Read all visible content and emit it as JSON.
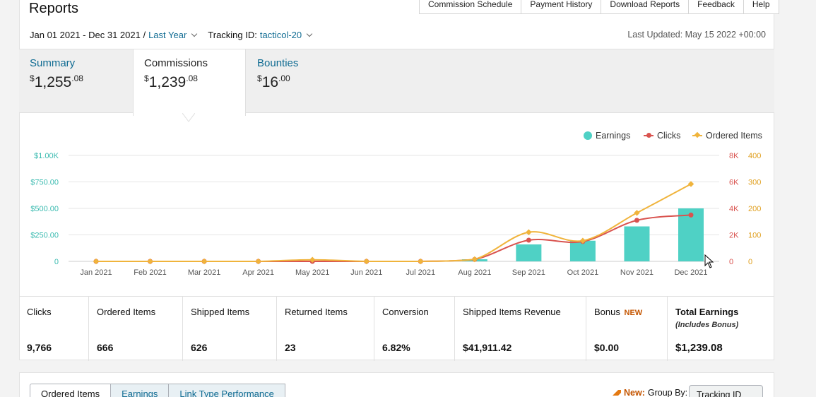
{
  "header": {
    "title": "Reports",
    "top_tabs": [
      "Commission Schedule",
      "Payment History",
      "Download Reports",
      "Feedback",
      "Help"
    ],
    "date_range": "Jan 01 2021 - Dec 31 2021 /",
    "date_preset": "Last Year",
    "tracking_label": "Tracking ID:",
    "tracking_id": "tacticol-20",
    "last_updated": "Last Updated: May 15 2022 +00:00"
  },
  "kpis": [
    {
      "label": "Summary",
      "currency": "$",
      "whole": "1,255",
      "cents": ".08"
    },
    {
      "label": "Commissions",
      "currency": "$",
      "whole": "1,239",
      "cents": ".08"
    },
    {
      "label": "Bounties",
      "currency": "$",
      "whole": "16",
      "cents": ".00"
    }
  ],
  "legend": {
    "earnings": "Earnings",
    "clicks": "Clicks",
    "ordered": "Ordered Items"
  },
  "colors": {
    "earnings": "#4fd1c5",
    "clicks": "#d9534f",
    "ordered": "#f0b43c",
    "link": "#0f6b92"
  },
  "chart_data": {
    "type": "bar",
    "categories": [
      "Jan 2021",
      "Feb 2021",
      "Mar 2021",
      "Apr 2021",
      "May 2021",
      "Jun 2021",
      "Jul 2021",
      "Aug 2021",
      "Sep 2021",
      "Oct 2021",
      "Nov 2021",
      "Dec 2021"
    ],
    "series": [
      {
        "name": "Earnings",
        "axis": "left",
        "type": "bar",
        "values": [
          0,
          0,
          0,
          0,
          0,
          0,
          0,
          20,
          160,
          195,
          330,
          500
        ]
      },
      {
        "name": "Clicks",
        "axis": "right-1",
        "type": "line",
        "values": [
          0,
          0,
          0,
          0,
          0,
          0,
          0,
          150,
          1600,
          1500,
          3100,
          3500
        ]
      },
      {
        "name": "Ordered Items",
        "axis": "right-2",
        "type": "line",
        "values": [
          0,
          0,
          0,
          0,
          6,
          0,
          0,
          8,
          110,
          78,
          183,
          292
        ]
      }
    ],
    "left_ticks": [
      "0",
      "$250.00",
      "$500.00",
      "$750.00",
      "$1.00K"
    ],
    "right1_ticks": [
      "0",
      "2K",
      "4K",
      "6K",
      "8K"
    ],
    "right2_ticks": [
      "0",
      "100",
      "200",
      "300",
      "400"
    ],
    "left_ylim": [
      0,
      1000
    ],
    "right1_ylim": [
      0,
      8000
    ],
    "right2_ylim": [
      0,
      400
    ],
    "grid": true,
    "legend_position": "top-right"
  },
  "stats": [
    {
      "label": "Clicks",
      "value": "9,766"
    },
    {
      "label": "Ordered Items",
      "value": "666"
    },
    {
      "label": "Shipped Items",
      "value": "626"
    },
    {
      "label": "Returned Items",
      "value": "23"
    },
    {
      "label": "Conversion",
      "value": "6.82%"
    },
    {
      "label": "Shipped Items Revenue",
      "value": "$41,911.42"
    },
    {
      "label": "Bonus",
      "badge": "NEW",
      "value": "$0.00"
    },
    {
      "label": "Total Earnings",
      "sub": "(Includes Bonus)",
      "value": "$1,239.08"
    }
  ],
  "bottom": {
    "tabs": [
      "Ordered Items",
      "Earnings",
      "Link Type Performance"
    ],
    "new_label": "New:",
    "group_by_label": "Group By:",
    "group_by_value": "Tracking ID"
  }
}
